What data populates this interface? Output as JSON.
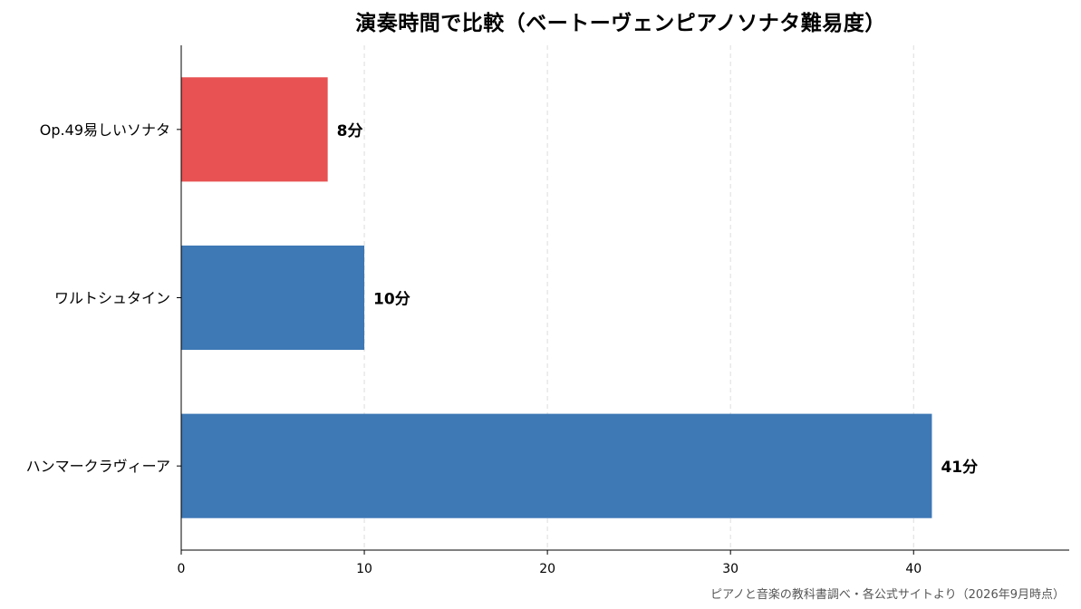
{
  "chart_data": {
    "type": "bar",
    "orientation": "horizontal",
    "title": "演奏時間で比較（ベートーヴェンピアノソナタ難易度）",
    "categories": [
      "Op.49易しいソナタ",
      "ワルトシュタイン",
      "ハンマークラヴィーア"
    ],
    "values": [
      8,
      10,
      41
    ],
    "value_suffix": "分",
    "colors": [
      "#e85252",
      "#3e78b5",
      "#3e78b5"
    ],
    "xlim": [
      0,
      48.5
    ],
    "xticks": [
      0,
      10,
      20,
      30,
      40
    ],
    "xlabel": "",
    "ylabel": "",
    "grid": "vertical-dashed"
  },
  "footer": {
    "source": "ピアノと音楽の教科書調べ・各公式サイトより（2026年9月時点）"
  }
}
